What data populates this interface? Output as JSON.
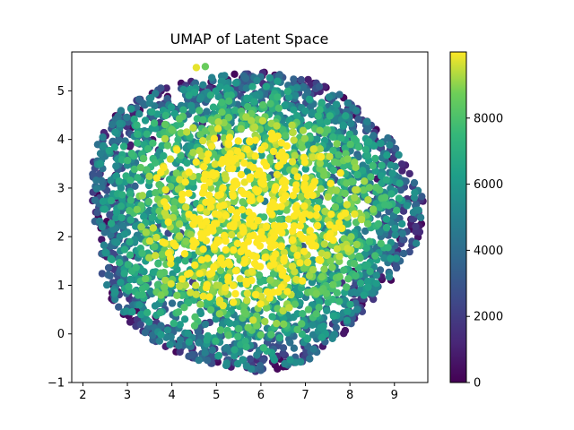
{
  "chart_data": {
    "type": "scatter",
    "title": "UMAP of Latent Space",
    "xlabel": "",
    "ylabel": "",
    "xlim": [
      1.75,
      9.75
    ],
    "ylim": [
      -1,
      5.8
    ],
    "x_ticks": [
      2,
      3,
      4,
      5,
      6,
      7,
      8,
      9
    ],
    "y_ticks": [
      -1,
      0,
      1,
      2,
      3,
      4,
      5
    ],
    "grid": false,
    "colormap": "viridis",
    "colorbar": {
      "range": [
        0,
        10000
      ],
      "ticks": [
        0,
        2000,
        4000,
        6000,
        8000
      ]
    },
    "cloud": {
      "center": [
        5.75,
        2.4
      ],
      "x_extent": [
        2.0,
        9.4
      ],
      "y_extent": [
        -0.65,
        5.5
      ],
      "point_count": 3500,
      "value_range": [
        0,
        9999
      ],
      "edge_values": "low (purple/teal)",
      "center_values": "high (yellow)"
    },
    "outliers": [
      {
        "x": 4.55,
        "y": 5.48,
        "value": 9800
      },
      {
        "x": 4.75,
        "y": 5.5,
        "value": 8600
      }
    ]
  }
}
